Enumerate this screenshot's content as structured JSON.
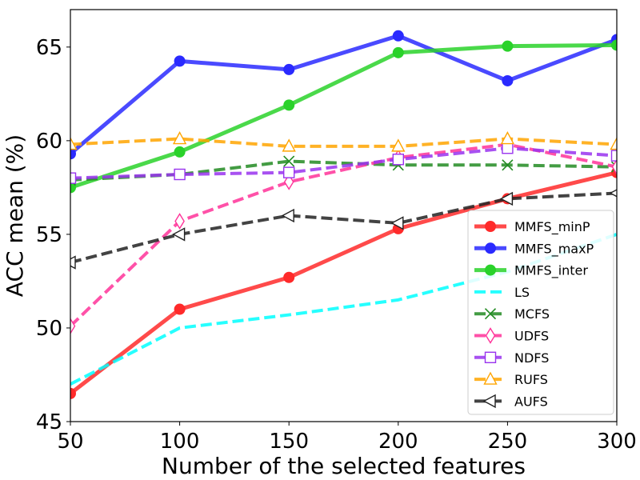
{
  "chart_data": {
    "type": "line",
    "title": "",
    "xlabel": "Number of the selected features",
    "ylabel": "ACC mean (%)",
    "x": [
      50,
      100,
      150,
      200,
      250,
      300
    ],
    "xlim": [
      50,
      300
    ],
    "ylim": [
      45,
      67
    ],
    "xticks": [
      "50",
      "100",
      "150",
      "200",
      "250",
      "300"
    ],
    "yticks": [
      "45",
      "50",
      "55",
      "60",
      "65"
    ],
    "grid": false,
    "legend_position": "lower-right",
    "series": [
      {
        "name": "MMFS_minP",
        "color": "#ff2a2a",
        "linestyle": "solid",
        "marker": "circle-filled",
        "values": [
          46.5,
          51.0,
          52.7,
          55.3,
          56.9,
          58.3
        ]
      },
      {
        "name": "MMFS_maxP",
        "color": "#2a2aff",
        "linestyle": "solid",
        "marker": "circle-filled",
        "values": [
          59.3,
          64.25,
          63.8,
          65.6,
          63.2,
          65.4
        ]
      },
      {
        "name": "MMFS_inter",
        "color": "#2ad22a",
        "linestyle": "solid",
        "marker": "circle-filled",
        "values": [
          57.5,
          59.4,
          61.9,
          64.7,
          65.05,
          65.1
        ]
      },
      {
        "name": "LS",
        "color": "#00ffff",
        "linestyle": "dashed",
        "marker": "none",
        "values": [
          47.0,
          50.0,
          50.7,
          51.5,
          53.0,
          55.0
        ]
      },
      {
        "name": "MCFS",
        "color": "#228b22",
        "linestyle": "dashed",
        "marker": "x",
        "values": [
          57.9,
          58.2,
          58.9,
          58.7,
          58.7,
          58.6
        ]
      },
      {
        "name": "UDFS",
        "color": "#ff3399",
        "linestyle": "dashed",
        "marker": "diamond-open",
        "values": [
          50.1,
          55.7,
          57.8,
          59.1,
          59.8,
          58.6
        ]
      },
      {
        "name": "NDFS",
        "color": "#9933ee",
        "linestyle": "dashed",
        "marker": "square-open",
        "values": [
          58.0,
          58.2,
          58.3,
          59.0,
          59.6,
          59.2
        ]
      },
      {
        "name": "RUFS",
        "color": "#ffa500",
        "linestyle": "dashed",
        "marker": "triangle-up-open",
        "values": [
          59.8,
          60.1,
          59.7,
          59.7,
          60.1,
          59.8
        ]
      },
      {
        "name": "AUFS",
        "color": "#222222",
        "linestyle": "dashed",
        "marker": "triangle-left-open",
        "values": [
          53.5,
          55.0,
          56.0,
          55.6,
          56.9,
          57.2
        ]
      }
    ]
  }
}
